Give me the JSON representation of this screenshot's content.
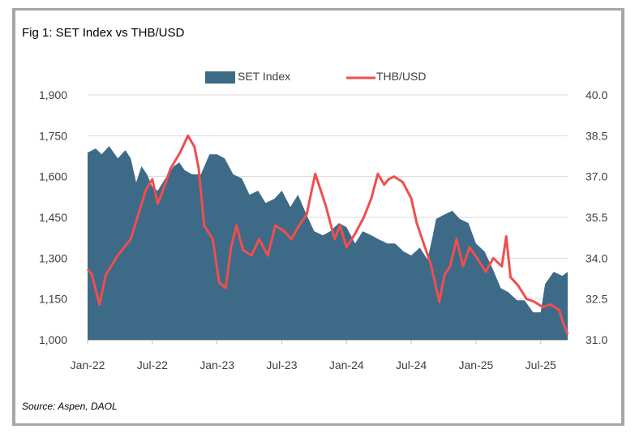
{
  "title": "Fig 1: SET Index vs THB/USD",
  "source": "Source: Aspen, DAOL",
  "chart_data": {
    "type": "area+line",
    "title": "Fig 1: SET Index vs THB/USD",
    "x_unit": "months since Jan-2022",
    "x_range": [
      0,
      44.5
    ],
    "x_ticks": [
      {
        "label": "Jan-22",
        "value": 0
      },
      {
        "label": "Jul-22",
        "value": 6
      },
      {
        "label": "Jan-23",
        "value": 12
      },
      {
        "label": "Jul-23",
        "value": 18
      },
      {
        "label": "Jan-24",
        "value": 24
      },
      {
        "label": "Jul-24",
        "value": 30
      },
      {
        "label": "Jan-25",
        "value": 36
      },
      {
        "label": "Jul-25",
        "value": 42
      }
    ],
    "y_left": {
      "range": [
        1000,
        1900
      ],
      "ticks": [
        "1,000",
        "1,150",
        "1,300",
        "1,450",
        "1,600",
        "1,750",
        "1,900"
      ],
      "tick_values": [
        1000,
        1150,
        1300,
        1450,
        1600,
        1750,
        1900
      ]
    },
    "y_right": {
      "range": [
        31.0,
        40.0
      ],
      "ticks": [
        "31.0",
        "32.5",
        "34.0",
        "35.5",
        "37.0",
        "38.5",
        "40.0"
      ],
      "tick_values": [
        31.0,
        32.5,
        34.0,
        35.5,
        37.0,
        38.5,
        40.0
      ]
    },
    "grid": true,
    "legend_position": "top-center",
    "colors": {
      "set": "#3d6a87",
      "thb": "#f04e4e",
      "grid": "#d9d9d9",
      "axis": "#bfbfbf"
    },
    "series": [
      {
        "name": "SET Index",
        "type": "area",
        "axis": "left",
        "x": [
          0,
          0.75,
          1.3,
          2,
          2.8,
          3.5,
          4,
          4.5,
          5,
          5.5,
          6,
          6.5,
          7.2,
          8,
          8.5,
          9,
          9.7,
          10.5,
          11.3,
          12,
          12.7,
          13.5,
          14.3,
          15,
          15.8,
          16.5,
          17.3,
          18,
          18.8,
          19.5,
          20.3,
          21,
          21.8,
          22.5,
          23.3,
          24,
          24.8,
          25.5,
          26.3,
          27,
          27.8,
          28.5,
          29.3,
          30,
          30.8,
          31.5,
          32,
          32.3,
          33,
          33.8,
          34.5,
          35.3,
          36,
          36.8,
          37.5,
          38.3,
          39,
          39.8,
          40.5,
          41.3,
          42,
          42.4,
          43.2,
          44,
          44.5
        ],
        "values": [
          1688,
          1703,
          1682,
          1712,
          1667,
          1697,
          1667,
          1578,
          1638,
          1608,
          1563,
          1548,
          1593,
          1638,
          1652,
          1623,
          1608,
          1608,
          1682,
          1682,
          1667,
          1608,
          1593,
          1533,
          1548,
          1503,
          1518,
          1548,
          1488,
          1533,
          1459,
          1399,
          1384,
          1399,
          1429,
          1414,
          1354,
          1399,
          1384,
          1369,
          1354,
          1354,
          1324,
          1310,
          1339,
          1295,
          1384,
          1444,
          1459,
          1474,
          1444,
          1429,
          1354,
          1324,
          1265,
          1190,
          1175,
          1145,
          1145,
          1101,
          1101,
          1205,
          1250,
          1235,
          1250
        ]
      },
      {
        "name": "THB/USD",
        "type": "line",
        "axis": "right",
        "x": [
          0,
          0.4,
          1.1,
          1.7,
          2.8,
          4,
          4.7,
          5.4,
          6,
          6.5,
          6.9,
          7.7,
          8.6,
          9.3,
          9.9,
          10.3,
          10.8,
          11.6,
          12.2,
          12.8,
          13.3,
          13.8,
          14.4,
          15.2,
          15.9,
          16.7,
          17.4,
          18.2,
          18.9,
          19.6,
          20.3,
          21.1,
          21.6,
          22.1,
          22.9,
          23.4,
          24,
          24.8,
          25.6,
          26.3,
          26.9,
          27.5,
          27.9,
          28.4,
          29.2,
          30,
          30.5,
          31.1,
          31.8,
          32.6,
          33.1,
          33.6,
          34.2,
          34.8,
          35.4,
          36.1,
          36.9,
          37.6,
          38.4,
          38.8,
          39.2,
          39.9,
          40.7,
          41.4,
          42.2,
          42.9,
          43.7,
          44.1,
          44.5
        ],
        "values": [
          33.6,
          33.4,
          32.3,
          33.4,
          34.1,
          34.7,
          35.6,
          36.5,
          36.9,
          36.0,
          36.4,
          37.3,
          37.9,
          38.5,
          38.1,
          37.3,
          35.2,
          34.7,
          33.1,
          32.9,
          34.4,
          35.2,
          34.3,
          34.1,
          34.7,
          34.1,
          35.2,
          35.0,
          34.7,
          35.2,
          35.6,
          37.1,
          36.5,
          35.9,
          34.7,
          35.2,
          34.4,
          34.9,
          35.5,
          36.2,
          37.1,
          36.7,
          36.9,
          37.0,
          36.8,
          36.2,
          35.3,
          34.6,
          33.8,
          32.4,
          33.4,
          33.7,
          34.7,
          33.7,
          34.4,
          34.0,
          33.5,
          34.0,
          33.7,
          34.8,
          33.3,
          33.0,
          32.5,
          32.4,
          32.2,
          32.3,
          32.1,
          31.6,
          31.2
        ]
      }
    ]
  }
}
